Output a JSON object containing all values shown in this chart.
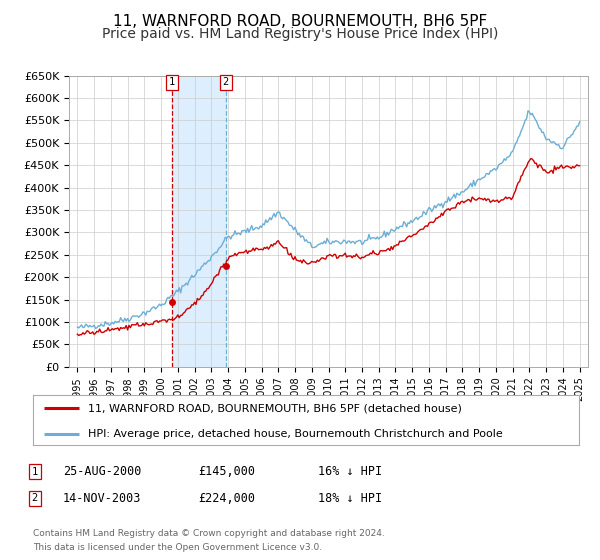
{
  "title": "11, WARNFORD ROAD, BOURNEMOUTH, BH6 5PF",
  "subtitle": "Price paid vs. HM Land Registry's House Price Index (HPI)",
  "ylim": [
    0,
    650000
  ],
  "yticks": [
    0,
    50000,
    100000,
    150000,
    200000,
    250000,
    300000,
    350000,
    400000,
    450000,
    500000,
    550000,
    600000,
    650000
  ],
  "ytick_labels": [
    "£0",
    "£50K",
    "£100K",
    "£150K",
    "£200K",
    "£250K",
    "£300K",
    "£350K",
    "£400K",
    "£450K",
    "£500K",
    "£550K",
    "£600K",
    "£650K"
  ],
  "hpi_color": "#6baed6",
  "price_color": "#cc0000",
  "marker_color": "#cc0000",
  "shaded_region_color": "#ddeeff",
  "vline1_color": "#cc0000",
  "vline2_color": "#6baed6",
  "transaction1": {
    "date": "2000-08-25",
    "price": 145000,
    "label": "1",
    "x": 2000.65
  },
  "transaction2": {
    "date": "2003-11-14",
    "price": 224000,
    "label": "2",
    "x": 2003.87
  },
  "legend_entry1": "11, WARNFORD ROAD, BOURNEMOUTH, BH6 5PF (detached house)",
  "legend_entry2": "HPI: Average price, detached house, Bournemouth Christchurch and Poole",
  "table_row1": [
    "1",
    "25-AUG-2000",
    "£145,000",
    "16% ↓ HPI"
  ],
  "table_row2": [
    "2",
    "14-NOV-2003",
    "£224,000",
    "18% ↓ HPI"
  ],
  "footer1": "Contains HM Land Registry data © Crown copyright and database right 2024.",
  "footer2": "This data is licensed under the Open Government Licence v3.0.",
  "background_color": "#ffffff",
  "grid_color": "#cccccc",
  "title_fontsize": 11,
  "subtitle_fontsize": 10,
  "hpi_anchors_x": [
    1995,
    1996,
    1997,
    1998,
    1999,
    2000,
    2001,
    2002,
    2003,
    2004,
    2005,
    2006,
    2007,
    2008,
    2009,
    2010,
    2011,
    2012,
    2013,
    2014,
    2015,
    2016,
    2017,
    2018,
    2019,
    2020,
    2021,
    2022,
    2023,
    2024,
    2025
  ],
  "hpi_anchors_y": [
    87000,
    92000,
    98000,
    107000,
    120000,
    138000,
    168000,
    205000,
    245000,
    290000,
    302000,
    315000,
    345000,
    305000,
    268000,
    278000,
    280000,
    278000,
    288000,
    308000,
    325000,
    348000,
    370000,
    390000,
    418000,
    442000,
    478000,
    572000,
    510000,
    490000,
    545000
  ],
  "price_anchors_x": [
    1995,
    1996,
    1997,
    1998,
    1999,
    2000,
    2001,
    2002,
    2003,
    2004,
    2005,
    2006,
    2007,
    2008,
    2009,
    2010,
    2011,
    2012,
    2013,
    2014,
    2015,
    2016,
    2017,
    2018,
    2019,
    2020,
    2021,
    2022,
    2023,
    2024,
    2025
  ],
  "price_anchors_y": [
    72000,
    77000,
    82000,
    88000,
    95000,
    102000,
    110000,
    140000,
    185000,
    245000,
    258000,
    262000,
    278000,
    240000,
    228000,
    248000,
    248000,
    245000,
    255000,
    270000,
    292000,
    318000,
    348000,
    368000,
    378000,
    368000,
    380000,
    465000,
    435000,
    445000,
    448000
  ],
  "noise_seed": 42,
  "hpi_noise_scale": 3500,
  "price_noise_scale": 2800
}
